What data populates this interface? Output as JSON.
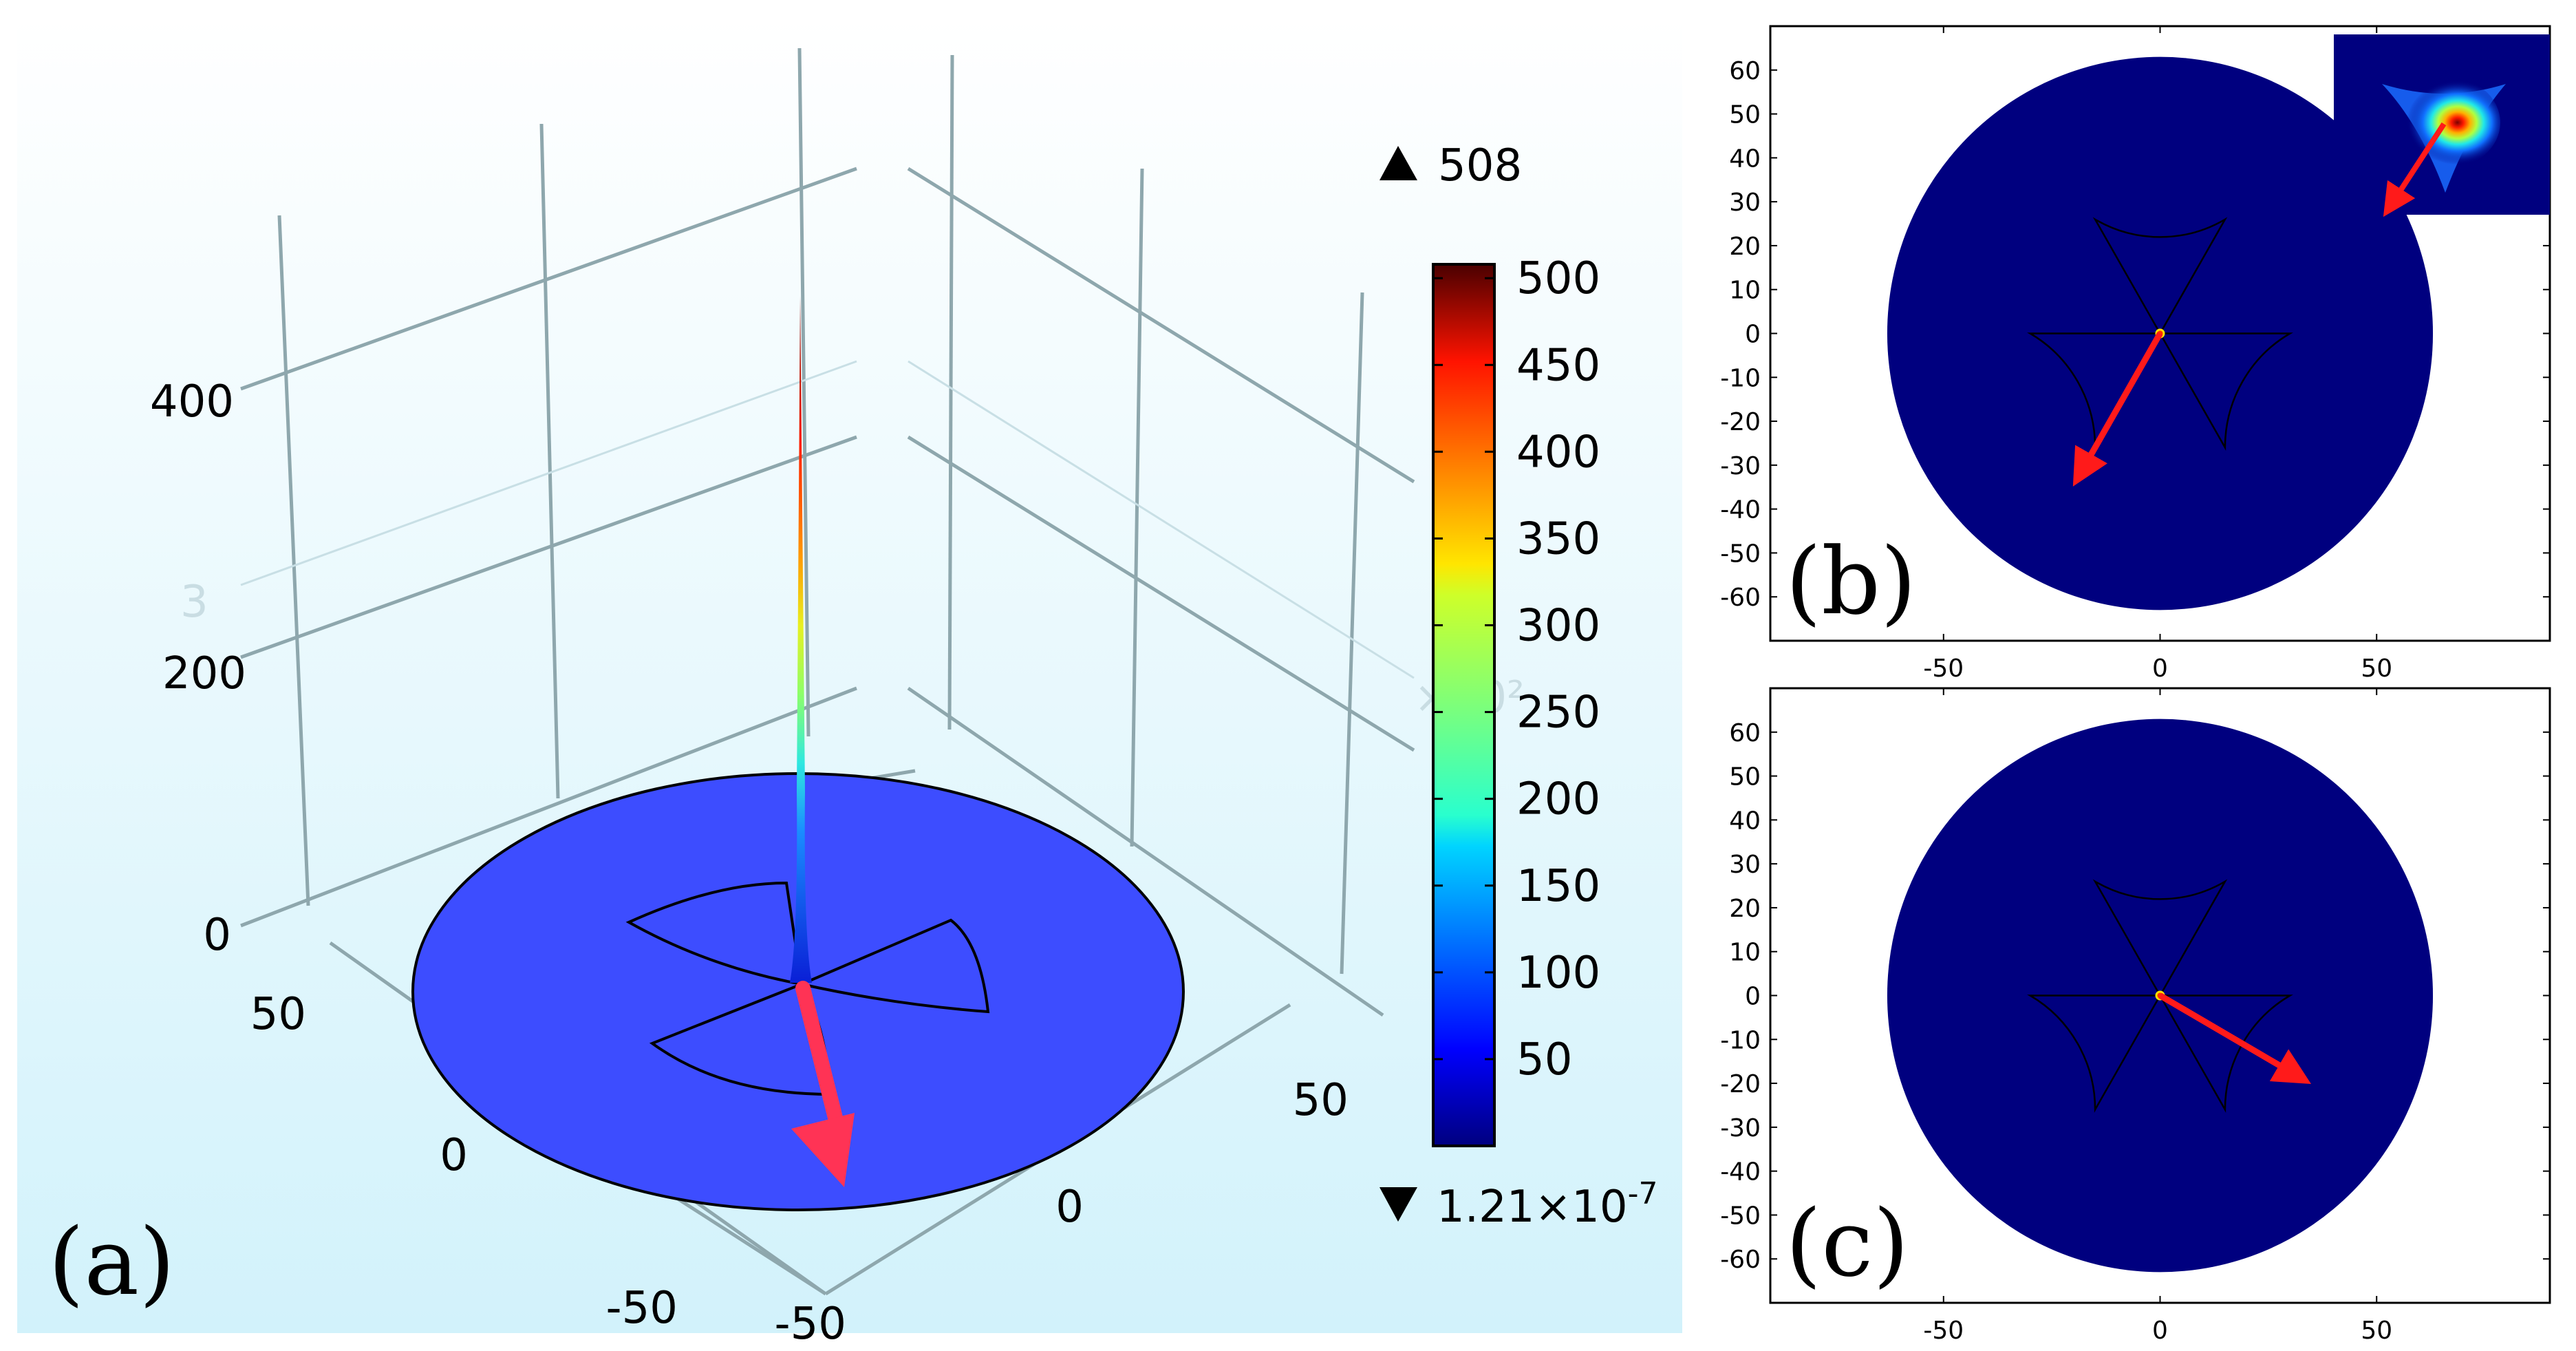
{
  "chart_data": [
    {
      "panel": "a",
      "type": "surface",
      "panel_label": "(a)",
      "z_axis_ticks": [
        "0",
        "200",
        "400"
      ],
      "y_axis_ticks": [
        "50",
        "0",
        "-50"
      ],
      "x_axis_ticks": [
        "50",
        "0",
        "-50"
      ],
      "faint_axis_fragments": [
        "3",
        "×10²"
      ],
      "colorbar": {
        "colormap": "jet",
        "range": [
          0,
          508
        ],
        "ticks": [
          "500",
          "450",
          "400",
          "350",
          "300",
          "250",
          "200",
          "150",
          "100",
          "50"
        ],
        "max_label": "508",
        "min_label": "1.21×10",
        "min_exponent": "-7"
      },
      "peak_value": 508,
      "arrow_color": "#ff3355",
      "disk_color": "#3d4dff"
    },
    {
      "panel": "b",
      "type": "heatmap",
      "panel_label": "(b)",
      "xlim": [
        -90,
        90
      ],
      "ylim": [
        -70,
        70
      ],
      "x_ticks": [
        "-50",
        "0",
        "50"
      ],
      "y_ticks": [
        "60",
        "50",
        "40",
        "30",
        "20",
        "10",
        "0",
        "-10",
        "-20",
        "-30",
        "-40",
        "-50",
        "-60"
      ],
      "circle_radius": 63,
      "arrow_direction_deg": 240,
      "has_inset": true,
      "background_color": "#00007f"
    },
    {
      "panel": "c",
      "type": "heatmap",
      "panel_label": "(c)",
      "xlim": [
        -90,
        90
      ],
      "ylim": [
        -70,
        70
      ],
      "x_ticks": [
        "-50",
        "0",
        "50"
      ],
      "y_ticks": [
        "60",
        "50",
        "40",
        "30",
        "20",
        "10",
        "0",
        "-10",
        "-20",
        "-30",
        "-40",
        "-50",
        "-60"
      ],
      "circle_radius": 63,
      "arrow_direction_deg": -30,
      "has_inset": false,
      "background_color": "#00007f"
    }
  ]
}
